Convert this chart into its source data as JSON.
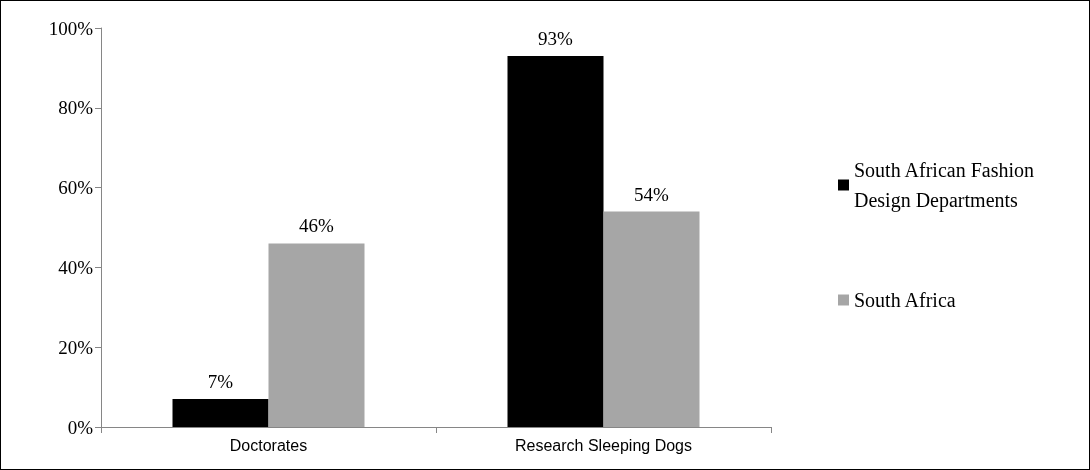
{
  "chart_data": {
    "type": "bar",
    "categories": [
      "Doctorates",
      "Research Sleeping Dogs"
    ],
    "series": [
      {
        "name": "South African Fashion Design Departments",
        "color": "#000000",
        "values": [
          7,
          93
        ],
        "value_labels": [
          "7%",
          "93%"
        ]
      },
      {
        "name": "South Africa",
        "color": "#a6a6a6",
        "values": [
          46,
          54
        ],
        "value_labels": [
          "46%",
          "54%"
        ]
      }
    ],
    "ylim": [
      0,
      100
    ],
    "yticks": [
      {
        "value": 0,
        "label": "0%"
      },
      {
        "value": 20,
        "label": "20%"
      },
      {
        "value": 40,
        "label": "40%"
      },
      {
        "value": 60,
        "label": "60%"
      },
      {
        "value": 80,
        "label": "80%"
      },
      {
        "value": 100,
        "label": "100%"
      }
    ],
    "grid": false,
    "legend": "right"
  }
}
